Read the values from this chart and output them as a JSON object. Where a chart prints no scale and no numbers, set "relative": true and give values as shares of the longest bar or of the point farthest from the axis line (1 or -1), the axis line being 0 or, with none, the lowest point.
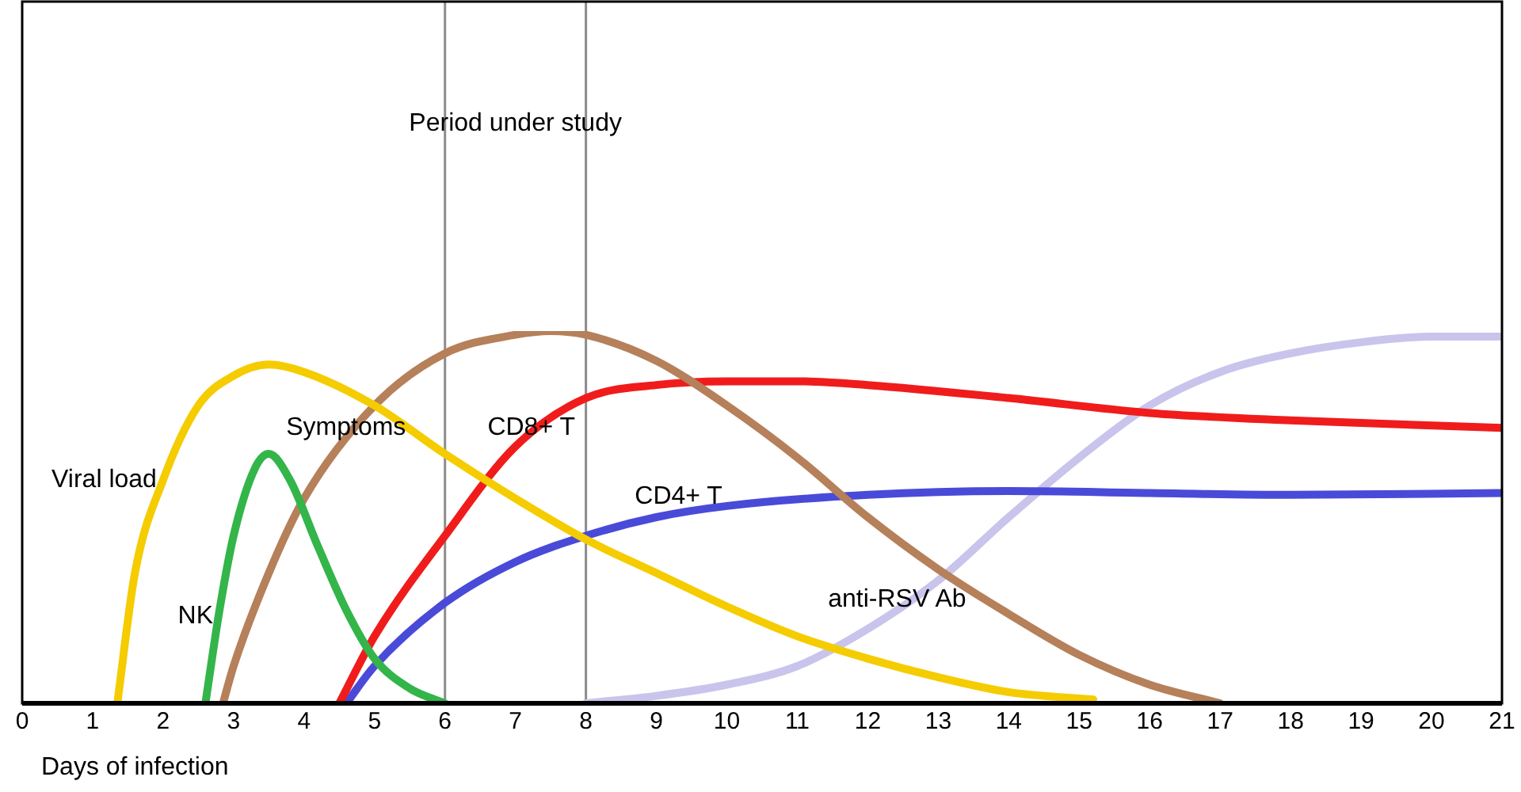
{
  "chart_data": {
    "type": "line",
    "xlabel": "Days of infection",
    "relative": true,
    "legend": false,
    "grid": false,
    "marker": "none",
    "xlim": [
      0,
      21
    ],
    "xticks": [
      0,
      1,
      2,
      3,
      4,
      5,
      6,
      7,
      8,
      9,
      10,
      11,
      12,
      13,
      14,
      15,
      16,
      17,
      18,
      19,
      20,
      21
    ],
    "ref_lines": [
      {
        "axis": "x",
        "value": 6,
        "color": "#8c8c8c"
      },
      {
        "axis": "x",
        "value": 8,
        "color": "#8c8c8c"
      }
    ],
    "annotations": [
      "Period under study"
    ],
    "series": [
      {
        "name": "Viral load",
        "color": "#f5cc00",
        "x": [
          1.35,
          1.6,
          2,
          2.5,
          3,
          3.5,
          4,
          5,
          6,
          7,
          8,
          9,
          10,
          11,
          12,
          13,
          14,
          15.2
        ],
        "values": [
          0,
          0.35,
          0.6,
          0.8,
          0.88,
          0.91,
          0.89,
          0.8,
          0.67,
          0.55,
          0.44,
          0.35,
          0.26,
          0.18,
          0.12,
          0.07,
          0.03,
          0.01
        ]
      },
      {
        "name": "NK",
        "color": "#33b54a",
        "x": [
          2.6,
          2.8,
          3,
          3.3,
          3.5,
          3.8,
          4.2,
          4.6,
          5,
          5.5,
          6
        ],
        "values": [
          0,
          0.25,
          0.45,
          0.63,
          0.67,
          0.6,
          0.42,
          0.25,
          0.12,
          0.04,
          0
        ]
      },
      {
        "name": "Symptoms",
        "color": "#b5805a",
        "x": [
          2.85,
          3,
          3.5,
          4,
          5,
          6,
          7,
          7.5,
          8,
          9,
          10,
          11,
          12,
          13,
          14,
          15,
          16,
          17
        ],
        "values": [
          0,
          0.1,
          0.35,
          0.55,
          0.8,
          0.94,
          0.99,
          1,
          0.99,
          0.92,
          0.8,
          0.66,
          0.5,
          0.36,
          0.24,
          0.13,
          0.05,
          0
        ]
      },
      {
        "name": "CD8+ T",
        "color": "#f01c1c",
        "x": [
          4.5,
          5,
          6,
          7,
          8,
          9,
          10,
          11,
          12,
          14,
          16,
          18,
          21
        ],
        "values": [
          0,
          0.18,
          0.45,
          0.69,
          0.82,
          0.855,
          0.865,
          0.865,
          0.855,
          0.82,
          0.78,
          0.76,
          0.74
        ]
      },
      {
        "name": "CD4+ T",
        "color": "#4a4ad9",
        "x": [
          4.6,
          5,
          6,
          7,
          8,
          9,
          10,
          12,
          14,
          16,
          18,
          21
        ],
        "values": [
          0,
          0.1,
          0.27,
          0.38,
          0.45,
          0.5,
          0.53,
          0.56,
          0.57,
          0.565,
          0.56,
          0.565
        ]
      },
      {
        "name": "anti-RSV Ab",
        "color": "#c8c4ec",
        "x": [
          8,
          9,
          10,
          11,
          12,
          13,
          14,
          15,
          16,
          17,
          18,
          19,
          20,
          21
        ],
        "values": [
          0,
          0.02,
          0.05,
          0.1,
          0.2,
          0.33,
          0.5,
          0.66,
          0.8,
          0.89,
          0.94,
          0.97,
          0.985,
          0.985
        ]
      }
    ]
  }
}
